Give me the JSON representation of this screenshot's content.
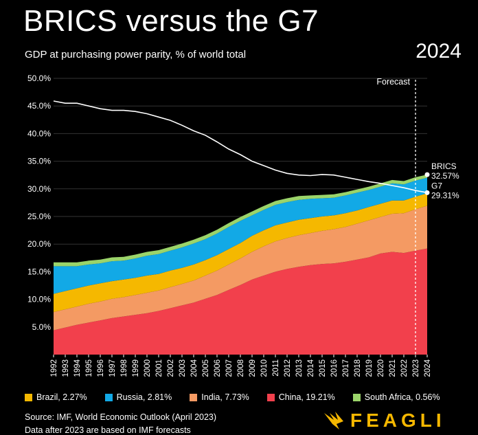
{
  "header": {
    "title": "BRICS versus the G7",
    "subtitle": "GDP at purchasing power parity, % of world total",
    "year": "2024"
  },
  "chart_data": {
    "type": "area",
    "x": [
      1992,
      1993,
      1994,
      1995,
      1996,
      1997,
      1998,
      1999,
      2000,
      2001,
      2002,
      2003,
      2004,
      2005,
      2006,
      2007,
      2008,
      2009,
      2010,
      2011,
      2012,
      2013,
      2014,
      2015,
      2016,
      2017,
      2018,
      2019,
      2020,
      2021,
      2022,
      2023,
      2024
    ],
    "ylim": [
      0,
      50
    ],
    "yticks": [
      "5.0%",
      "10.0%",
      "15.0%",
      "20.0%",
      "25.0%",
      "30.0%",
      "35.0%",
      "40.0%",
      "45.0%",
      "50.0%"
    ],
    "ytick_values": [
      5,
      10,
      15,
      20,
      25,
      30,
      35,
      40,
      45,
      50
    ],
    "grid": true,
    "stacked_series": [
      {
        "name": "China, 19.21%",
        "color": "#f2404c",
        "values": [
          4.4,
          4.9,
          5.4,
          5.8,
          6.2,
          6.6,
          6.9,
          7.2,
          7.5,
          7.9,
          8.4,
          8.9,
          9.4,
          10.1,
          10.8,
          11.7,
          12.6,
          13.6,
          14.3,
          15.0,
          15.5,
          15.9,
          16.2,
          16.4,
          16.5,
          16.8,
          17.2,
          17.6,
          18.3,
          18.6,
          18.4,
          18.8,
          19.21
        ]
      },
      {
        "name": "India, 7.73%",
        "color": "#f49a63",
        "values": [
          3.3,
          3.3,
          3.3,
          3.4,
          3.4,
          3.5,
          3.5,
          3.6,
          3.7,
          3.7,
          3.8,
          3.9,
          4.0,
          4.2,
          4.4,
          4.6,
          4.8,
          5.0,
          5.3,
          5.5,
          5.6,
          5.7,
          5.8,
          6.0,
          6.2,
          6.3,
          6.5,
          6.7,
          6.6,
          6.9,
          7.2,
          7.5,
          7.73
        ]
      },
      {
        "name": "Brazil, 2.27%",
        "color": "#f5b800",
        "values": [
          3.3,
          3.3,
          3.3,
          3.3,
          3.3,
          3.2,
          3.2,
          3.1,
          3.1,
          3.0,
          3.0,
          2.9,
          2.9,
          2.8,
          2.8,
          2.8,
          2.8,
          2.9,
          2.9,
          2.9,
          2.8,
          2.8,
          2.7,
          2.6,
          2.5,
          2.5,
          2.4,
          2.4,
          2.4,
          2.4,
          2.3,
          2.3,
          2.27
        ]
      },
      {
        "name": "Russia, 2.81%",
        "color": "#12a9e6",
        "values": [
          5.0,
          4.5,
          4.0,
          3.8,
          3.6,
          3.6,
          3.4,
          3.5,
          3.6,
          3.6,
          3.6,
          3.7,
          3.8,
          3.8,
          3.9,
          4.0,
          4.0,
          3.7,
          3.7,
          3.7,
          3.7,
          3.6,
          3.5,
          3.3,
          3.2,
          3.2,
          3.2,
          3.1,
          3.1,
          3.1,
          2.9,
          2.9,
          2.81
        ]
      },
      {
        "name": "South Africa, 0.56%",
        "color": "#9bd46a",
        "values": [
          0.7,
          0.7,
          0.7,
          0.7,
          0.7,
          0.7,
          0.7,
          0.7,
          0.7,
          0.7,
          0.7,
          0.7,
          0.7,
          0.7,
          0.7,
          0.7,
          0.7,
          0.7,
          0.7,
          0.7,
          0.7,
          0.7,
          0.6,
          0.6,
          0.6,
          0.6,
          0.6,
          0.6,
          0.6,
          0.6,
          0.6,
          0.6,
          0.56
        ]
      }
    ],
    "line_series": [
      {
        "name": "G7",
        "color": "#ffffff",
        "values": [
          45.9,
          45.5,
          45.5,
          45.0,
          44.5,
          44.2,
          44.2,
          44.0,
          43.6,
          43.0,
          42.4,
          41.5,
          40.5,
          39.7,
          38.5,
          37.2,
          36.2,
          35.0,
          34.2,
          33.4,
          32.8,
          32.5,
          32.4,
          32.6,
          32.5,
          32.1,
          31.7,
          31.3,
          31.0,
          30.6,
          30.2,
          29.7,
          29.31
        ]
      }
    ],
    "end_labels": [
      {
        "label": "BRICS",
        "value_label": "32.57%",
        "value": 32.57
      },
      {
        "label": "G7",
        "value_label": "29.31%",
        "value": 29.31
      }
    ],
    "forecast_label": "Forecast",
    "forecast_start": 2023
  },
  "legend": [
    {
      "label": "Brazil, 2.27%",
      "color": "#f5b800"
    },
    {
      "label": "Russia, 2.81%",
      "color": "#12a9e6"
    },
    {
      "label": "India, 7.73%",
      "color": "#f49a63"
    },
    {
      "label": "China, 19.21%",
      "color": "#f2404c"
    },
    {
      "label": "South Africa, 0.56%",
      "color": "#9bd46a"
    }
  ],
  "footer": {
    "source": "Source: IMF, World Economic Outlook (April 2023)",
    "note": "Data after 2023 are based on IMF forecasts",
    "logo_text": "FEAGLI"
  }
}
